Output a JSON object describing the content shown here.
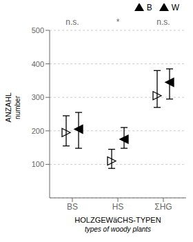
{
  "chart_data": {
    "type": "scatter",
    "xlabel": "HOLZGEWäCHS-TYPEN",
    "xlabel_sub": "types of woody plants",
    "ylabel": "ANZAHL",
    "ylabel_sub": "number",
    "categories": [
      "BS",
      "HS",
      "ΣHG"
    ],
    "annotations": [
      "n.s.",
      "*",
      "n.s."
    ],
    "series": [
      {
        "name": "B",
        "color": "#000000",
        "marker": "triangle_right_open",
        "values": [
          195,
          110,
          305
        ],
        "low": [
          155,
          88,
          270
        ],
        "high": [
          245,
          145,
          380
        ]
      },
      {
        "name": "W",
        "color": "#000000",
        "marker": "triangle_left_filled",
        "values": [
          205,
          175,
          345
        ],
        "low": [
          148,
          148,
          295
        ],
        "high": [
          255,
          210,
          385
        ]
      }
    ],
    "ylim": [
      0,
      500
    ],
    "yticks": [
      100,
      200,
      300,
      400,
      500
    ],
    "grid": true
  }
}
